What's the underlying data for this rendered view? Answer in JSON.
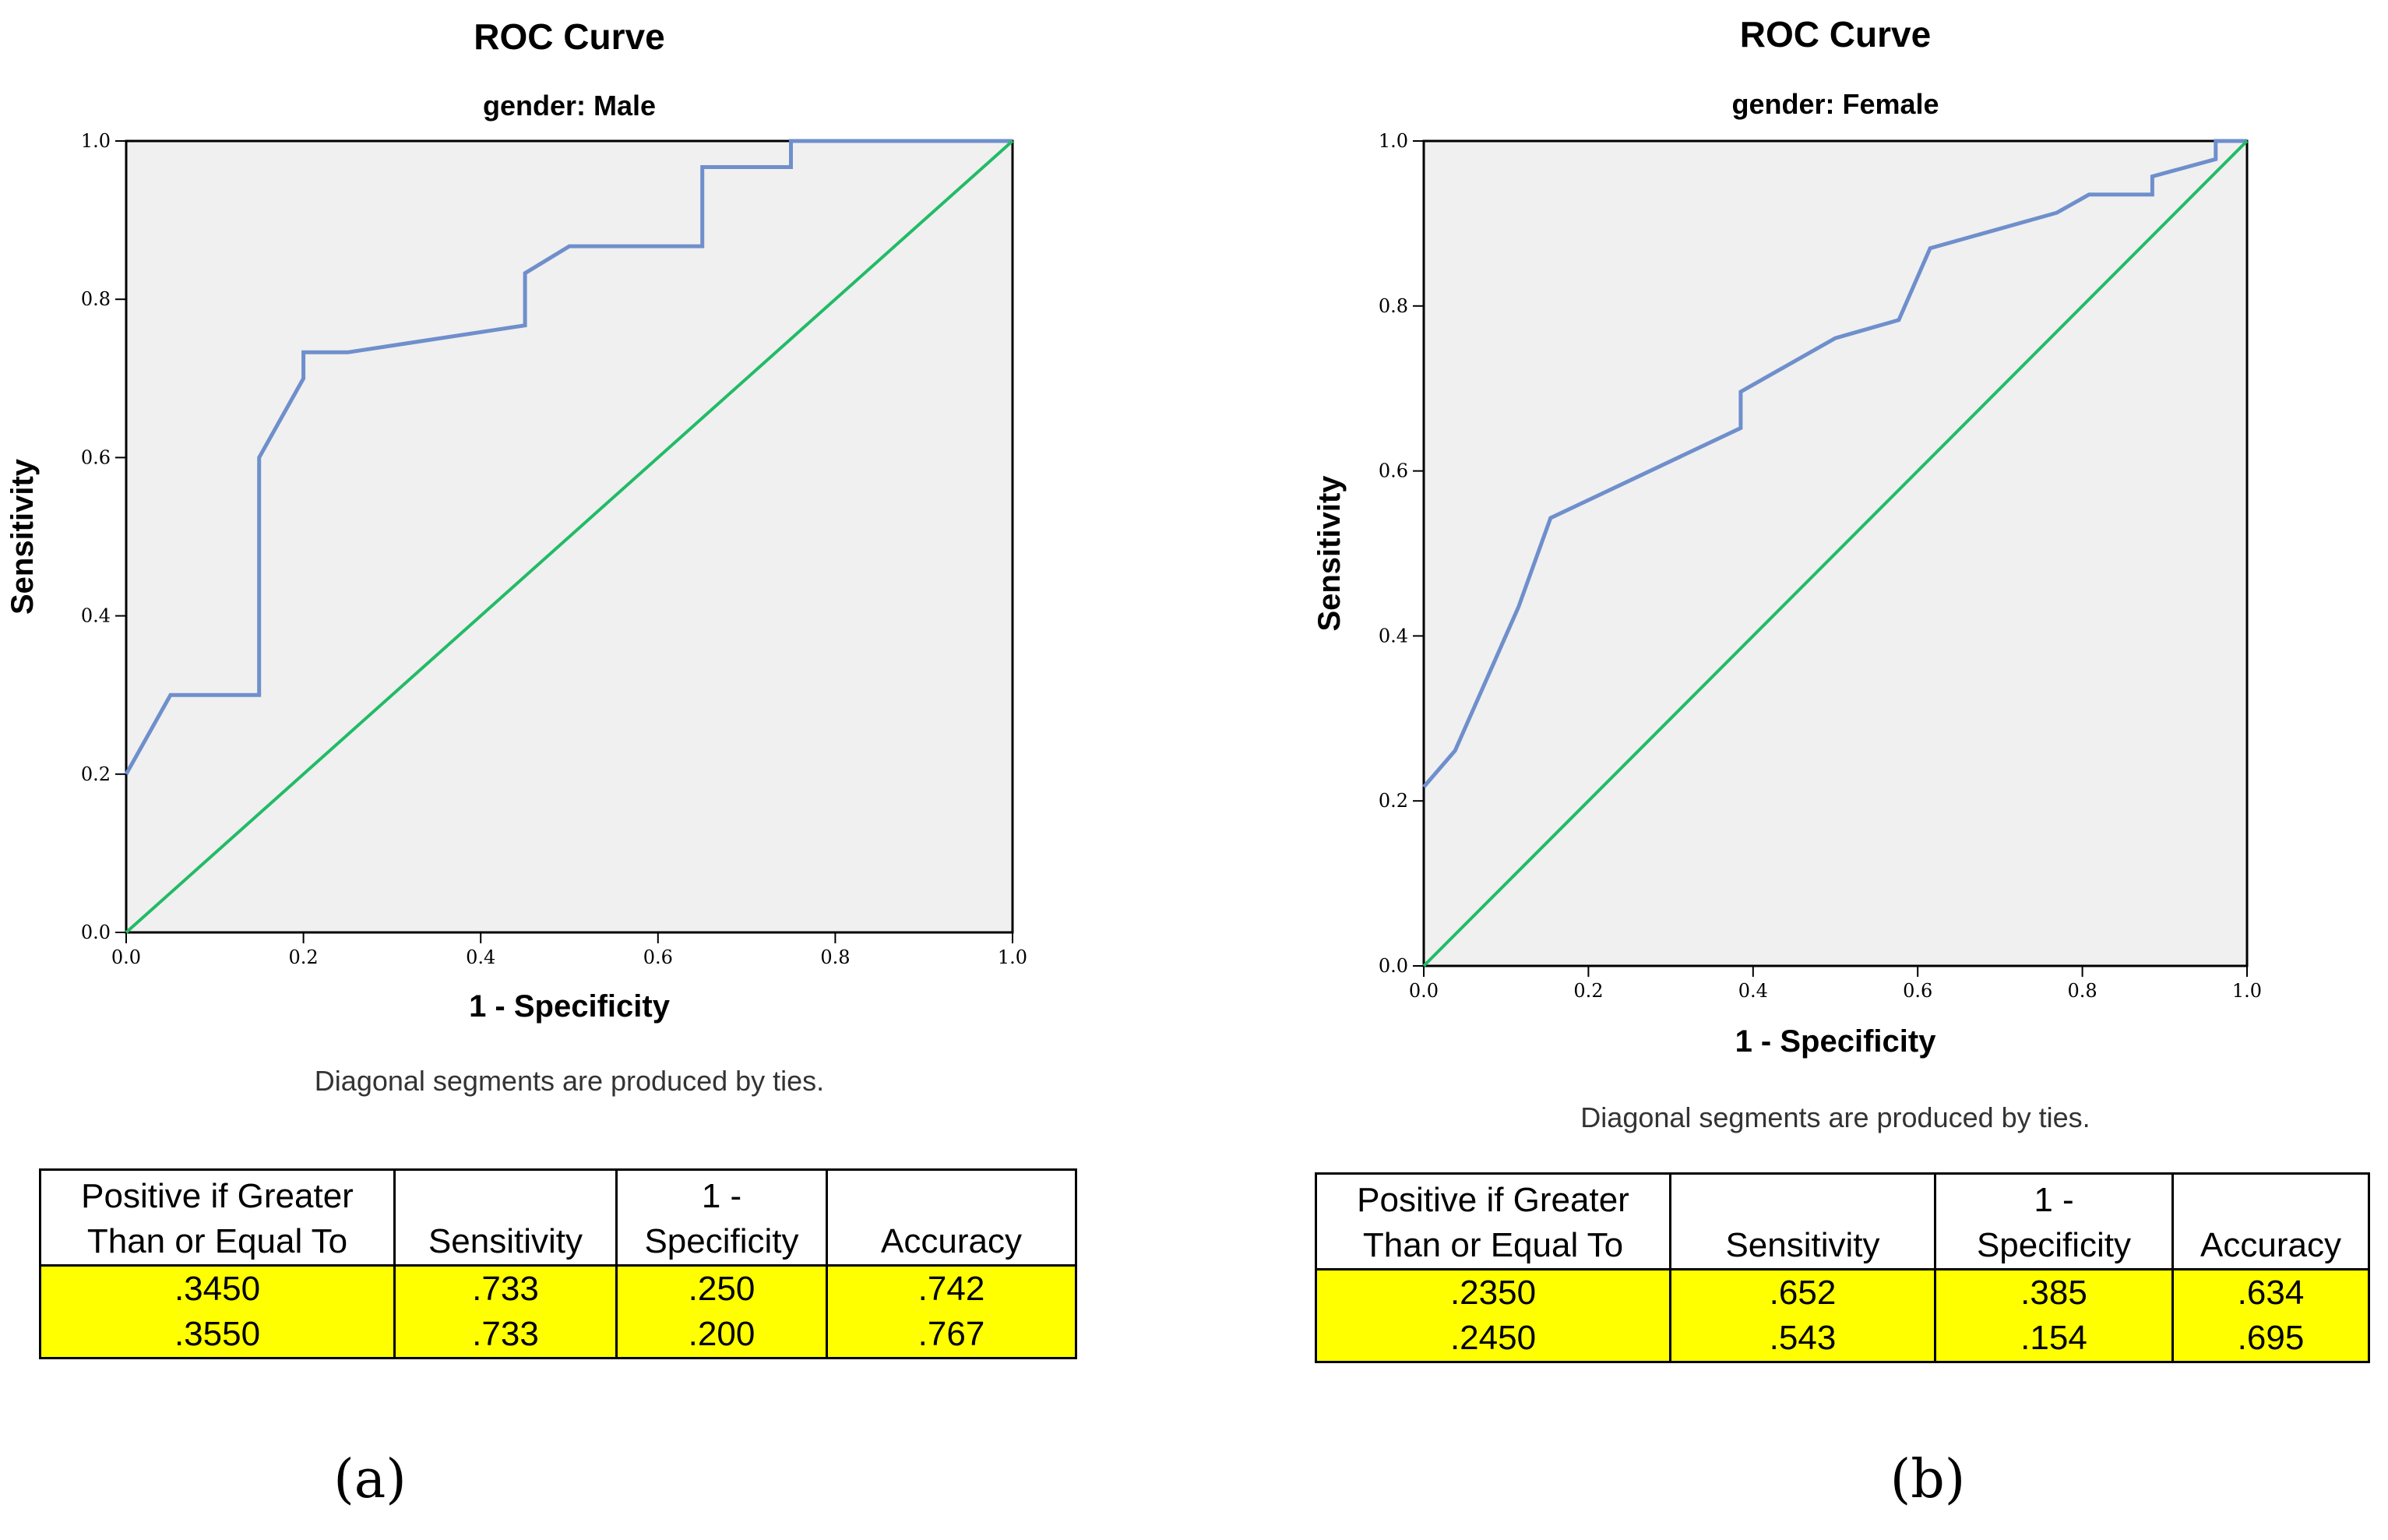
{
  "chart_data": [
    {
      "type": "line",
      "title": "ROC Curve",
      "subtitle": "gender: Male",
      "xlabel": "1 - Specificity",
      "ylabel": "Sensitivity",
      "xlim": [
        0,
        1
      ],
      "ylim": [
        0,
        1
      ],
      "xticks": [
        "0.0",
        "0.2",
        "0.4",
        "0.6",
        "0.8",
        "1.0"
      ],
      "yticks": [
        "0.0",
        "0.2",
        "0.4",
        "0.6",
        "0.8",
        "1.0"
      ],
      "footnote": "Diagonal segments are produced by ties.",
      "panel_label": "(a)",
      "colors": {
        "roc": "#6f8fcc",
        "reference": "#22bb66",
        "plot_bg": "#f0f0f0"
      },
      "series": [
        {
          "role": "roc",
          "x": [
            0,
            0.05,
            0.15,
            0.15,
            0.2,
            0.2,
            0.25,
            0.45,
            0.45,
            0.5,
            0.65,
            0.65,
            0.75,
            0.75,
            1.0
          ],
          "y": [
            0.2,
            0.3,
            0.3,
            0.6,
            0.7,
            0.733,
            0.733,
            0.767,
            0.833,
            0.867,
            0.867,
            0.967,
            0.967,
            1.0,
            1.0
          ]
        },
        {
          "role": "reference",
          "x": [
            0,
            1
          ],
          "y": [
            0,
            1
          ]
        }
      ],
      "table": {
        "headers": [
          [
            "Positive if Greater",
            "Than or Equal To"
          ],
          [
            "",
            "Sensitivity"
          ],
          [
            "1 -",
            "Specificity"
          ],
          [
            "",
            "Accuracy"
          ]
        ],
        "rows": [
          [
            ".3450",
            ".733",
            ".250",
            ".742"
          ],
          [
            ".3550",
            ".733",
            ".200",
            ".767"
          ]
        ]
      }
    },
    {
      "type": "line",
      "title": "ROC Curve",
      "subtitle": "gender: Female",
      "xlabel": "1 - Specificity",
      "ylabel": "Sensitivity",
      "xlim": [
        0,
        1
      ],
      "ylim": [
        0,
        1
      ],
      "xticks": [
        "0.0",
        "0.2",
        "0.4",
        "0.6",
        "0.8",
        "1.0"
      ],
      "yticks": [
        "0.0",
        "0.2",
        "0.4",
        "0.6",
        "0.8",
        "1.0"
      ],
      "footnote": "Diagonal segments are produced by ties.",
      "panel_label": "(b)",
      "colors": {
        "roc": "#6f8fcc",
        "reference": "#22bb66",
        "plot_bg": "#f0f0f0"
      },
      "series": [
        {
          "role": "roc",
          "x": [
            0,
            0.038,
            0.115,
            0.154,
            0.385,
            0.385,
            0.5,
            0.577,
            0.615,
            0.769,
            0.808,
            0.885,
            0.885,
            0.962,
            0.962,
            1.0
          ],
          "y": [
            0.217,
            0.261,
            0.435,
            0.543,
            0.652,
            0.696,
            0.761,
            0.783,
            0.87,
            0.913,
            0.935,
            0.935,
            0.957,
            0.978,
            1.0,
            1.0
          ]
        },
        {
          "role": "reference",
          "x": [
            0,
            1
          ],
          "y": [
            0,
            1
          ]
        }
      ],
      "table": {
        "headers": [
          [
            "Positive if Greater",
            "Than or Equal To"
          ],
          [
            "",
            "Sensitivity"
          ],
          [
            "1 -",
            "Specificity"
          ],
          [
            "",
            "Accuracy"
          ]
        ],
        "rows": [
          [
            ".2350",
            ".652",
            ".385",
            ".634"
          ],
          [
            ".2450",
            ".543",
            ".154",
            ".695"
          ]
        ]
      }
    }
  ]
}
